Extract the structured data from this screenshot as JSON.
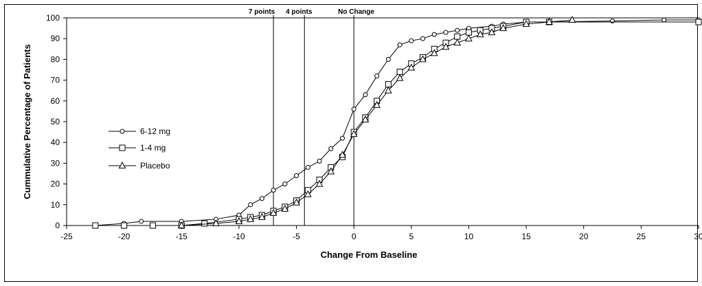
{
  "chart_data": {
    "type": "line",
    "title": "",
    "xlabel": "Change From Baseline",
    "ylabel": "Cummulative Percentage of Patients",
    "xlim": [
      -25,
      30
    ],
    "ylim": [
      0,
      100
    ],
    "xticks": [
      -25,
      -20,
      -15,
      -10,
      -5,
      0,
      5,
      10,
      15,
      20,
      25,
      30
    ],
    "yticks": [
      0,
      10,
      20,
      30,
      40,
      50,
      60,
      70,
      80,
      90,
      100
    ],
    "grid": false,
    "legend_position": "left",
    "reference_lines": [
      {
        "x": -7,
        "label": "7 points"
      },
      {
        "x": -4.3,
        "label": "4 points"
      },
      {
        "x": 0,
        "label": "No Change"
      }
    ],
    "series": [
      {
        "name": "6-12 mg",
        "marker": "circle",
        "x": [
          -22.5,
          -20,
          -18.5,
          -15,
          -12,
          -10,
          -9,
          -8,
          -7,
          -6,
          -5,
          -4,
          -3,
          -2,
          -1,
          0,
          1,
          2,
          3,
          4,
          5,
          6,
          7,
          8,
          9,
          10,
          12,
          13,
          15,
          17,
          22.5,
          27,
          30
        ],
        "y": [
          0,
          1,
          2,
          2,
          3,
          5,
          10,
          13,
          17,
          20,
          24,
          28,
          31,
          37,
          42,
          56,
          63,
          72,
          80,
          87,
          89,
          90,
          92,
          93,
          94,
          95,
          96,
          97,
          98,
          98,
          98.5,
          99,
          99
        ]
      },
      {
        "name": "1-4 mg",
        "marker": "square",
        "x": [
          -22.5,
          -20,
          -17.5,
          -15,
          -13,
          -10,
          -9,
          -8,
          -7,
          -6,
          -5,
          -4,
          -3,
          -2,
          -1,
          0,
          1,
          2,
          3,
          4,
          5,
          6,
          7,
          8,
          9,
          10,
          11,
          12,
          13,
          15,
          17,
          30
        ],
        "y": [
          0,
          0,
          0,
          0,
          1,
          3,
          4,
          5,
          7,
          9,
          12,
          17,
          22,
          28,
          33,
          45,
          52,
          60,
          68,
          74,
          78,
          81,
          85,
          88,
          91,
          93,
          94,
          95,
          96,
          98,
          98,
          98
        ]
      },
      {
        "name": "Placebo",
        "marker": "triangle",
        "x": [
          -15,
          -12,
          -10,
          -9,
          -8,
          -7,
          -6,
          -5,
          -4,
          -3,
          -2,
          -1,
          0,
          1,
          2,
          3,
          4,
          5,
          6,
          7,
          8,
          9,
          10,
          11,
          12,
          13,
          15,
          17,
          19
        ],
        "y": [
          0,
          1,
          2,
          3,
          4,
          6,
          8,
          11,
          15,
          20,
          26,
          34,
          44,
          51,
          58,
          65,
          71,
          76,
          80,
          83,
          86,
          88,
          90,
          92,
          93,
          95,
          97,
          98,
          99
        ]
      }
    ]
  }
}
